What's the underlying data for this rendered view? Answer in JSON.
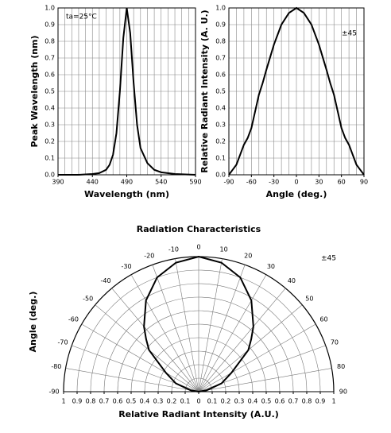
{
  "chart_data": [
    {
      "type": "line",
      "xlabel": "Wavelength (nm)",
      "ylabel": "Peak Wavelength (nm)",
      "annotation": "ta=25°C",
      "x": [
        390,
        420,
        440,
        450,
        460,
        465,
        470,
        475,
        480,
        485,
        490,
        495,
        500,
        505,
        510,
        520,
        530,
        540,
        560,
        590
      ],
      "values": [
        0,
        0,
        0.005,
        0.01,
        0.03,
        0.06,
        0.12,
        0.25,
        0.5,
        0.82,
        1.0,
        0.85,
        0.55,
        0.3,
        0.16,
        0.07,
        0.03,
        0.015,
        0.005,
        0
      ],
      "color": "#000000",
      "xlim": [
        390,
        590
      ],
      "xticks": [
        390,
        440,
        490,
        540,
        590
      ],
      "xgrid": [
        390,
        400,
        410,
        420,
        430,
        440,
        450,
        460,
        470,
        480,
        490,
        500,
        510,
        520,
        530,
        540,
        550,
        560,
        570,
        580,
        590
      ],
      "ylim": [
        0,
        1
      ],
      "yticks": [
        {
          "value": 0,
          "label": "0.0"
        },
        0.1,
        0.2,
        0.3,
        0.4,
        0.5,
        0.6,
        0.7,
        0.8,
        0.9,
        {
          "value": 1,
          "label": "1.0"
        }
      ],
      "grid": true
    },
    {
      "type": "line",
      "xlabel": "Angle (deg.)",
      "ylabel": "Relative Radiant Intensity (A. U.)",
      "annotation": "±45",
      "x": [
        -90,
        -85,
        -80,
        -75,
        -70,
        -65,
        -60,
        -55,
        -50,
        -45,
        -40,
        -30,
        -20,
        -10,
        0,
        10,
        20,
        30,
        40,
        45,
        50,
        55,
        60,
        65,
        70,
        75,
        80,
        85,
        90
      ],
      "values": [
        0,
        0.03,
        0.06,
        0.12,
        0.18,
        0.22,
        0.28,
        0.38,
        0.48,
        0.55,
        0.63,
        0.78,
        0.9,
        0.97,
        1.0,
        0.97,
        0.9,
        0.78,
        0.63,
        0.55,
        0.48,
        0.38,
        0.28,
        0.22,
        0.18,
        0.12,
        0.06,
        0.03,
        0
      ],
      "color": "#000000",
      "xlim": [
        -90,
        90
      ],
      "xticks": [
        -90,
        -60,
        -30,
        0,
        30,
        60,
        90
      ],
      "xgrid": [
        -90,
        -80,
        -70,
        -60,
        -50,
        -40,
        -30,
        -20,
        -10,
        0,
        10,
        20,
        30,
        40,
        50,
        60,
        70,
        80,
        90
      ],
      "ylim": [
        0,
        1
      ],
      "yticks": [
        {
          "value": 0,
          "label": "0.0"
        },
        0.1,
        0.2,
        0.3,
        0.4,
        0.5,
        0.6,
        0.7,
        0.8,
        0.9,
        {
          "value": 1,
          "label": "1.0"
        }
      ],
      "grid": true
    },
    {
      "type": "polar",
      "title": "Radiation Characteristics",
      "xlabel": "Relative Radiant Intensity (A.U.)",
      "ylabel": "Angle (deg.)",
      "annotation": "±45",
      "theta": [
        -90,
        -80,
        -70,
        -60,
        -50,
        -45,
        -40,
        -30,
        -20,
        -10,
        0,
        10,
        20,
        30,
        40,
        45,
        50,
        60,
        70,
        80,
        90
      ],
      "values": [
        0,
        0.06,
        0.18,
        0.28,
        0.48,
        0.55,
        0.63,
        0.78,
        0.9,
        0.97,
        1.0,
        0.97,
        0.9,
        0.78,
        0.63,
        0.55,
        0.48,
        0.28,
        0.18,
        0.06,
        0
      ],
      "color": "#000000",
      "thetaticks": [
        -90,
        -80,
        -70,
        -60,
        -50,
        -40,
        -30,
        -20,
        -10,
        0,
        10,
        20,
        30,
        40,
        50,
        60,
        70,
        80,
        90
      ],
      "rticks": [
        0,
        0.1,
        0.2,
        0.3,
        0.4,
        0.5,
        0.6,
        0.7,
        0.8,
        0.9,
        1
      ]
    }
  ]
}
